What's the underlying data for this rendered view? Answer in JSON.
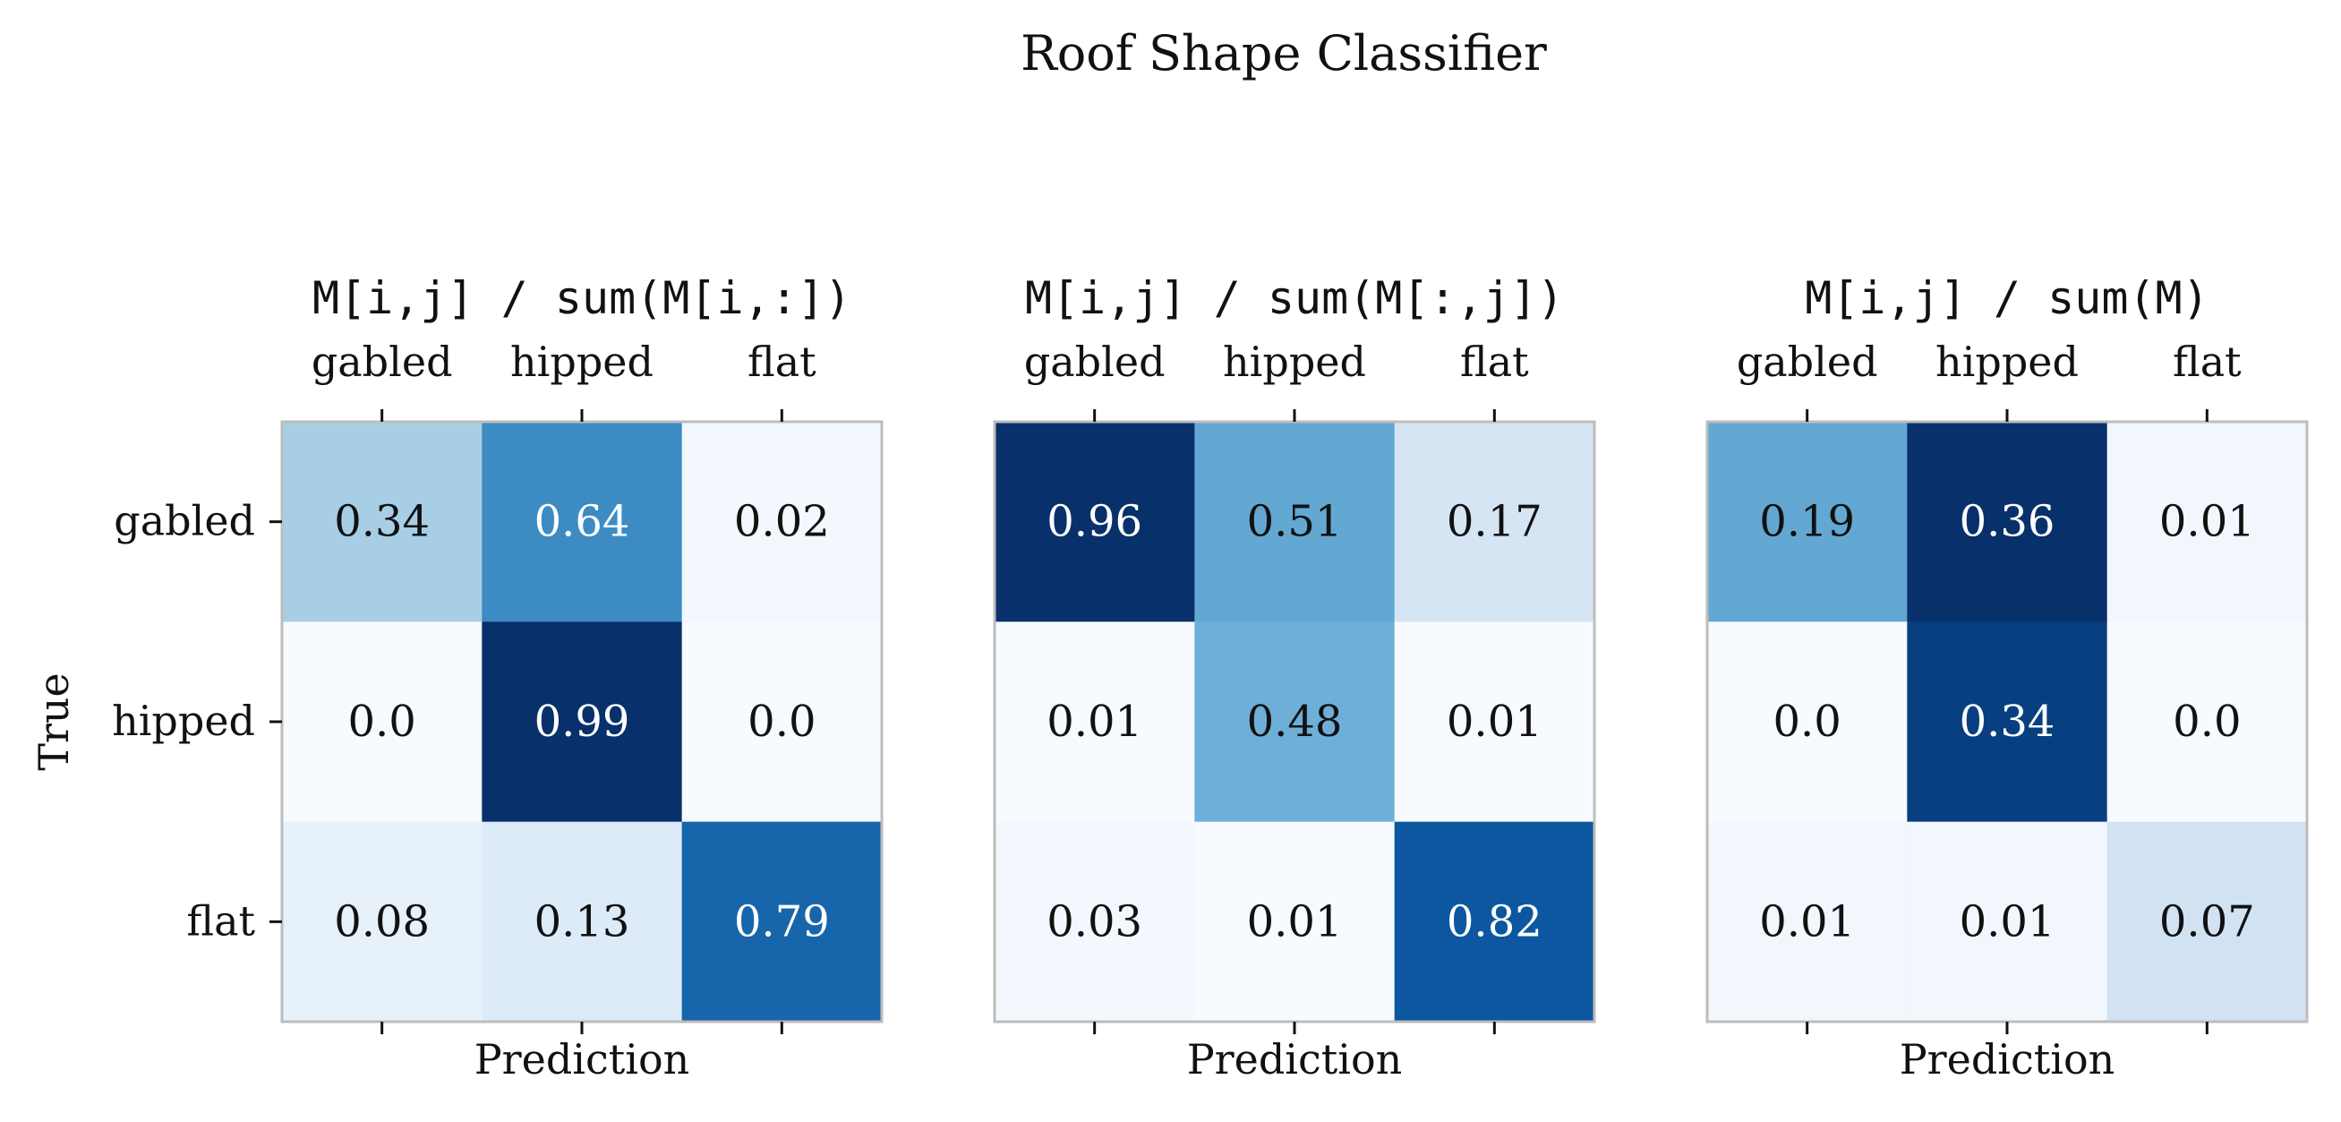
{
  "figure": {
    "title": "Roof Shape Classifier"
  },
  "chart_data": [
    {
      "type": "heatmap",
      "title": "M[i,j] / sum(M[i,:])",
      "xlabel": "Prediction",
      "ylabel": "True",
      "x_categories": [
        "gabled",
        "hipped",
        "flat"
      ],
      "y_categories": [
        "gabled",
        "hipped",
        "flat"
      ],
      "values": [
        [
          0.34,
          0.64,
          0.02
        ],
        [
          0.0,
          0.99,
          0.0
        ],
        [
          0.08,
          0.13,
          0.79
        ]
      ],
      "value_labels": [
        [
          "0.34",
          "0.64",
          "0.02"
        ],
        [
          "0.0",
          "0.99",
          "0.0"
        ],
        [
          "0.08",
          "0.13",
          "0.79"
        ]
      ],
      "colormap": "Blues"
    },
    {
      "type": "heatmap",
      "title": "M[i,j] / sum(M[:,j])",
      "xlabel": "Prediction",
      "ylabel": "",
      "x_categories": [
        "gabled",
        "hipped",
        "flat"
      ],
      "y_categories": [],
      "values": [
        [
          0.96,
          0.51,
          0.17
        ],
        [
          0.01,
          0.48,
          0.01
        ],
        [
          0.03,
          0.01,
          0.82
        ]
      ],
      "value_labels": [
        [
          "0.96",
          "0.51",
          "0.17"
        ],
        [
          "0.01",
          "0.48",
          "0.01"
        ],
        [
          "0.03",
          "0.01",
          "0.82"
        ]
      ],
      "colormap": "Blues"
    },
    {
      "type": "heatmap",
      "title": "M[i,j] / sum(M)",
      "xlabel": "Prediction",
      "ylabel": "",
      "x_categories": [
        "gabled",
        "hipped",
        "flat"
      ],
      "y_categories": [],
      "values": [
        [
          0.19,
          0.36,
          0.01
        ],
        [
          0.0,
          0.34,
          0.0
        ],
        [
          0.01,
          0.01,
          0.07
        ]
      ],
      "value_labels": [
        [
          "0.19",
          "0.36",
          "0.01"
        ],
        [
          "0.0",
          "0.34",
          "0.0"
        ],
        [
          "0.01",
          "0.01",
          "0.07"
        ]
      ],
      "colormap": "Blues"
    }
  ]
}
